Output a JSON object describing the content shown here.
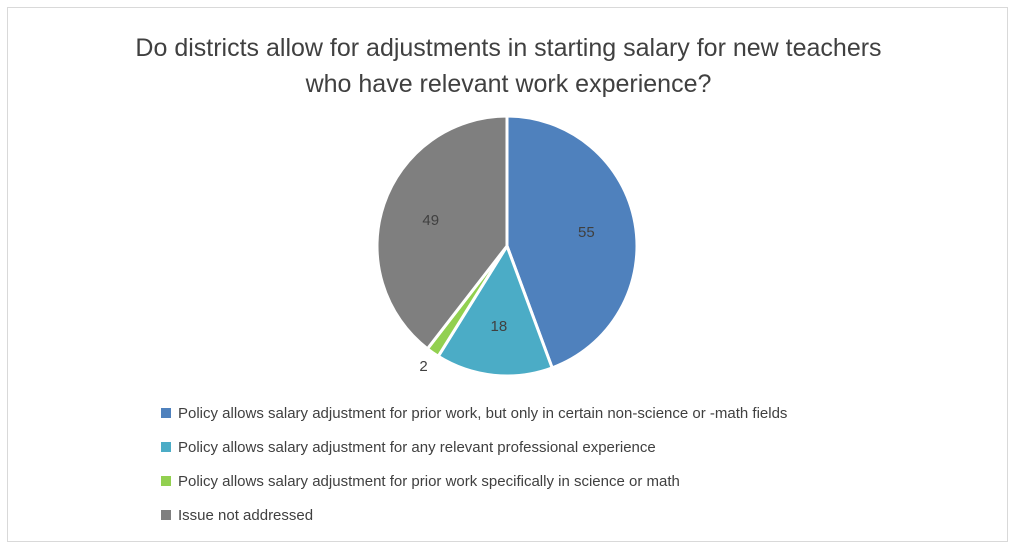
{
  "chart_data": {
    "type": "pie",
    "title_lines": [
      "Do districts allow for adjustments in starting salary for new teachers",
      "who have relevant work experience?"
    ],
    "slices": [
      {
        "label": "Policy allows salary adjustment for prior work, but only in certain non-science or -math fields",
        "value": 55,
        "color": "#4f81bd"
      },
      {
        "label": "Policy allows salary adjustment for any relevant professional experience",
        "value": 18,
        "color": "#4bacc6"
      },
      {
        "label": "Policy allows salary adjustment for prior work specifically in science or math",
        "value": 2,
        "color": "#92d050"
      },
      {
        "label": "Issue not addressed",
        "value": 49,
        "color": "#7f7f7f"
      }
    ],
    "data_labels": [
      "55",
      "18",
      "2",
      "49"
    ],
    "legend_position": "bottom-left",
    "start_angle": "12 o'clock",
    "direction": "clockwise"
  }
}
